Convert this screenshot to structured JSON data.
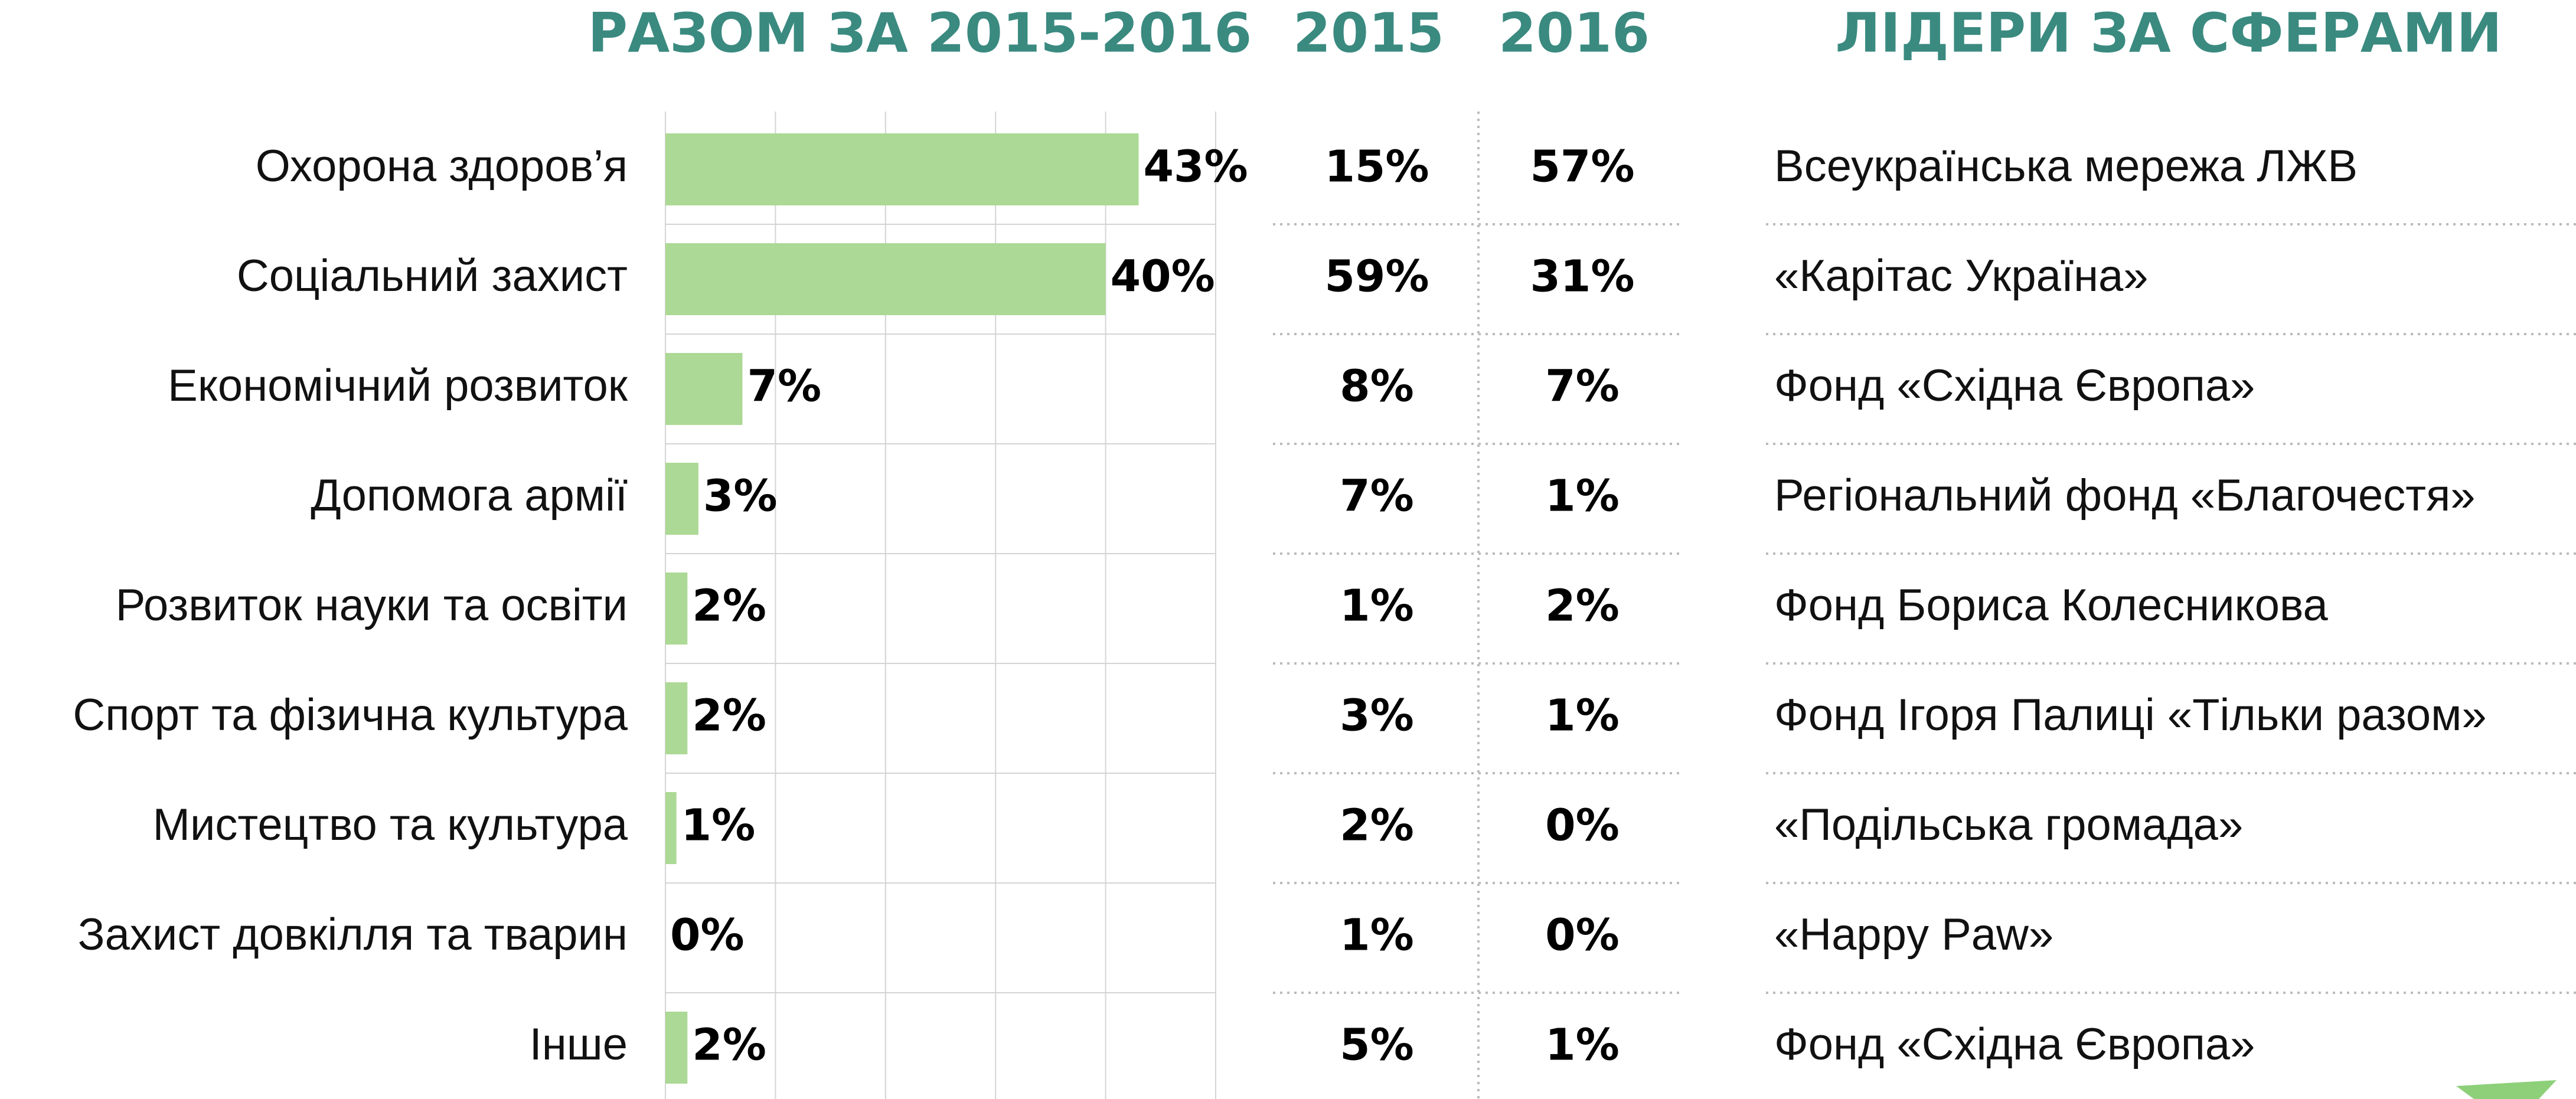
{
  "chart_data": {
    "type": "bar",
    "title": "РАЗОМ ЗА 2015-2016",
    "categories": [
      "Охорона здоров’я",
      "Соціальний захист",
      "Економічний розвиток",
      "Допомога армії",
      "Розвиток науки та освіти",
      "Спорт та фізична культура",
      "Мистецтво та культура",
      "Захист довкілля та тварин",
      "Інше"
    ],
    "values": [
      43,
      40,
      7,
      3,
      2,
      2,
      1,
      0,
      2
    ],
    "value_labels": [
      "43%",
      "40%",
      "7%",
      "3%",
      "2%",
      "2%",
      "1%",
      "0%",
      "2%"
    ],
    "color": "#acd995",
    "xlim": [
      0,
      50
    ],
    "xticks": [
      0,
      10,
      20,
      30,
      40,
      50
    ],
    "grid": true,
    "columns": [
      {
        "title": "2015",
        "values": [
          15,
          59,
          8,
          7,
          1,
          3,
          2,
          1,
          5
        ],
        "value_labels": [
          "15%",
          "59%",
          "8%",
          "7%",
          "1%",
          "3%",
          "2%",
          "1%",
          "5%"
        ]
      },
      {
        "title": "2016",
        "values": [
          57,
          31,
          7,
          1,
          2,
          1,
          0,
          0,
          1
        ],
        "value_labels": [
          "57%",
          "31%",
          "7%",
          "1%",
          "2%",
          "1%",
          "0%",
          "0%",
          "1%"
        ]
      }
    ],
    "leaders": {
      "title": "ЛІДЕРИ ЗА СФЕРАМИ",
      "values": [
        "Всеукраїнська мережа ЛЖВ",
        "«Карітас Україна»",
        "Фонд «Східна Європа»",
        "Регіональний фонд «Благочестя»",
        "Фонд Бориса Колесникова",
        "Фонд Ігоря Палиці «Тільки разом»",
        "«Подільська громада»",
        "«Happy Paw»",
        "Фонд «Східна Європа»"
      ]
    }
  }
}
